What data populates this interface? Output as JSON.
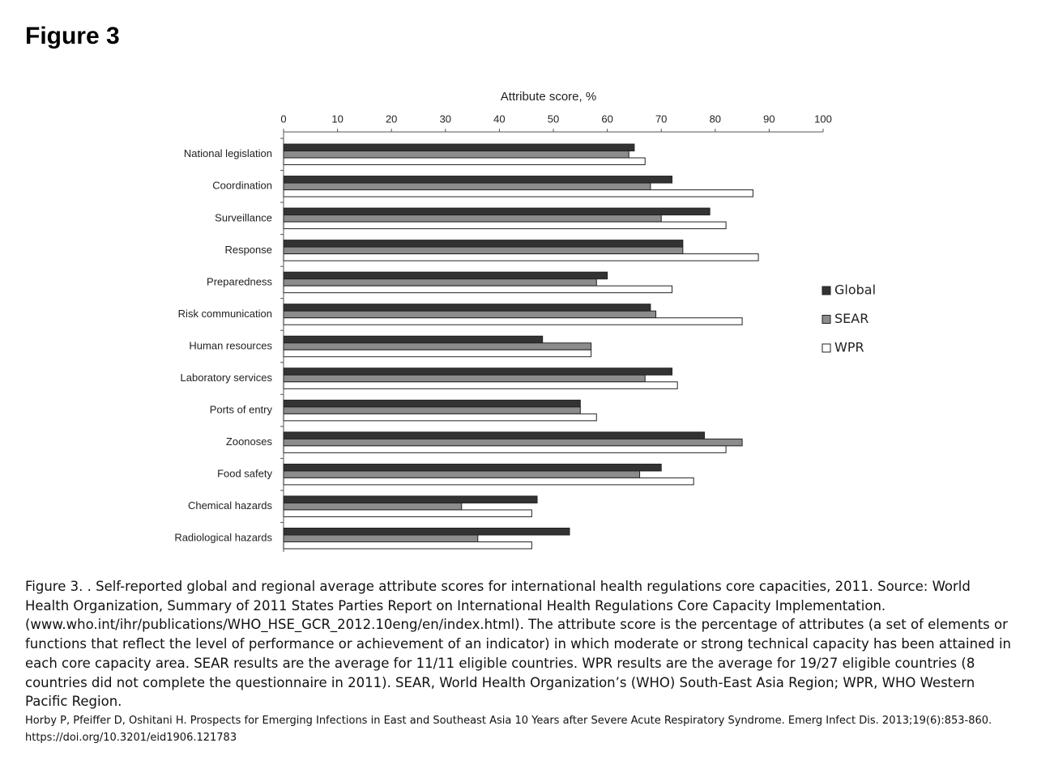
{
  "slide_title": "Figure 3",
  "chart_data": {
    "type": "hbar",
    "x_label": "Attribute score, %",
    "categories": [
      "National legislation",
      "Coordination",
      "Surveillance",
      "Response",
      "Preparedness",
      "Risk communication",
      "Human resources",
      "Laboratory services",
      "Ports of entry",
      "Zoonoses",
      "Food safety",
      "Chemical hazards",
      "Radiological hazards"
    ],
    "series": [
      {
        "name": "Global",
        "color": "#333333",
        "values": [
          65,
          72,
          79,
          74,
          60,
          68,
          48,
          72,
          55,
          78,
          70,
          47,
          53
        ]
      },
      {
        "name": "SEAR",
        "color": "#8c8c8c",
        "values": [
          64,
          68,
          70,
          74,
          58,
          69,
          57,
          67,
          55,
          85,
          66,
          33,
          36
        ]
      },
      {
        "name": "WPR",
        "color": "#ffffff",
        "values": [
          67,
          87,
          82,
          88,
          72,
          85,
          57,
          73,
          58,
          82,
          76,
          46,
          46
        ]
      }
    ],
    "xlim": [
      0,
      100
    ],
    "xticks": [
      0,
      10,
      20,
      30,
      40,
      50,
      60,
      70,
      80,
      90,
      100
    ],
    "legend": "right"
  },
  "caption": "Figure 3. . Self-reported global and regional average attribute scores for international health regulations core capacities, 2011. Source: World Health Organization, Summary of 2011 States Parties Report on International Health Regulations Core Capacity Implementation. (www.who.int/ihr/publications/WHO_HSE_GCR_2012.10eng/en/index.html). The attribute score is the percentage of attributes (a set of elements or functions that reflect the level of performance or achievement of an indicator) in which moderate or strong technical capacity has been attained in each core capacity area. SEAR results are the average for 11/11 eligible countries. WPR results are the average for 19/27 eligible countries (8 countries did not complete the questionnaire in 2011). SEAR, World Health Organization’s (WHO) South-East Asia Region; WPR, WHO Western Pacific Region.",
  "citation": "Horby P, Pfeiffer D, Oshitani H. Prospects for Emerging Infections in East and Southeast Asia 10 Years after Severe Acute Respiratory Syndrome. Emerg Infect Dis. 2013;19(6):853-860. https://doi.org/10.3201/eid1906.121783"
}
